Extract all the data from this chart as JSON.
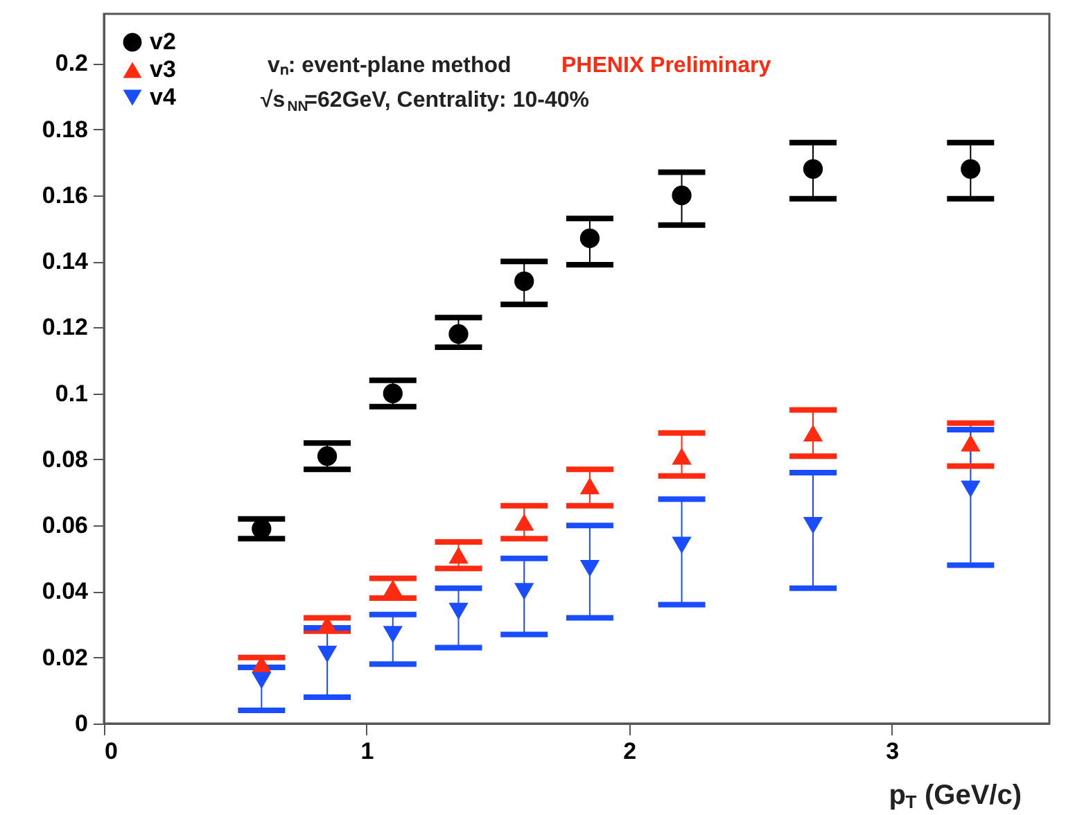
{
  "chart_data": {
    "type": "scatter",
    "xlabel": "p$_{T}$ (GeV/c)",
    "x": [
      0.6,
      0.85,
      1.1,
      1.35,
      1.6,
      1.85,
      2.2,
      2.7,
      3.3
    ],
    "series": [
      {
        "name": "v2",
        "color": "#000000",
        "marker": "circle",
        "values": [
          0.059,
          0.081,
          0.1,
          0.118,
          0.134,
          0.147,
          0.16,
          0.168,
          0.168
        ],
        "errors": [
          [
            0.056,
            0.062
          ],
          [
            0.077,
            0.085
          ],
          [
            0.096,
            0.104
          ],
          [
            0.114,
            0.123
          ],
          [
            0.127,
            0.14
          ],
          [
            0.139,
            0.153
          ],
          [
            0.151,
            0.167
          ],
          [
            0.159,
            0.176
          ],
          [
            0.159,
            0.176
          ]
        ]
      },
      {
        "name": "v3",
        "color": "#ff2a10",
        "marker": "triangle",
        "values": [
          0.018,
          0.03,
          0.041,
          0.051,
          0.061,
          0.072,
          0.081,
          0.088,
          0.085
        ],
        "errors": [
          [
            0.017,
            0.02
          ],
          [
            0.028,
            0.032
          ],
          [
            0.038,
            0.044
          ],
          [
            0.047,
            0.055
          ],
          [
            0.056,
            0.066
          ],
          [
            0.066,
            0.077
          ],
          [
            0.075,
            0.088
          ],
          [
            0.081,
            0.095
          ],
          [
            0.078,
            0.091
          ]
        ]
      },
      {
        "name": "v4",
        "color": "#1a4dff",
        "marker": "triangle_down",
        "values": [
          0.013,
          0.021,
          0.027,
          0.034,
          0.04,
          0.047,
          0.054,
          0.06,
          0.071
        ],
        "errors": [
          [
            0.004,
            0.017
          ],
          [
            0.008,
            0.029
          ],
          [
            0.018,
            0.033
          ],
          [
            0.023,
            0.041
          ],
          [
            0.027,
            0.05
          ],
          [
            0.032,
            0.06
          ],
          [
            0.036,
            0.068
          ],
          [
            0.041,
            0.076
          ],
          [
            0.048,
            0.089
          ]
        ]
      }
    ],
    "xlim": [
      0,
      3.6
    ],
    "ylim": [
      0,
      0.215
    ],
    "xticks": [
      0,
      1,
      2,
      3
    ],
    "yticks": [
      0,
      0.02,
      0.04,
      0.06,
      0.08,
      0.1,
      0.12,
      0.14,
      0.16,
      0.18,
      0.2
    ],
    "grid": false,
    "legend": "top left",
    "annotations": [
      "vₙ: event-plane method",
      "√s$_{NN}$=62GeV, Centrality: 10-40%",
      "PHENIX Preliminary"
    ]
  }
}
